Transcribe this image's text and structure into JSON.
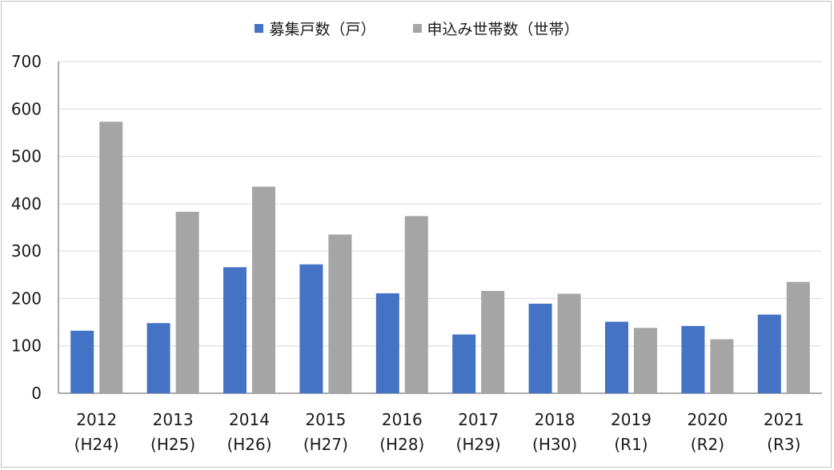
{
  "chart_data": {
    "type": "bar",
    "categories": [
      "2012",
      "2013",
      "2014",
      "2015",
      "2016",
      "2017",
      "2018",
      "2019",
      "2020",
      "2021"
    ],
    "category_sublabels": [
      "(H24)",
      "(H25)",
      "(H26)",
      "(H27)",
      "(H28)",
      "(H29)",
      "(H30)",
      "(R1)",
      "(R2)",
      "(R3)"
    ],
    "series": [
      {
        "name": "募集戸数（戸）",
        "color": "#4472c4",
        "values": [
          132,
          148,
          266,
          272,
          211,
          124,
          189,
          151,
          142,
          166
        ]
      },
      {
        "name": "申込み世帯数（世帯）",
        "color": "#a5a5a5",
        "values": [
          573,
          383,
          436,
          335,
          374,
          216,
          210,
          138,
          114,
          235
        ]
      }
    ],
    "ylim": [
      0,
      700
    ],
    "yticks": [
      0,
      100,
      200,
      300,
      400,
      500,
      600,
      700
    ],
    "grid": true,
    "legend_position": "top",
    "title": "",
    "xlabel": "",
    "ylabel": ""
  }
}
